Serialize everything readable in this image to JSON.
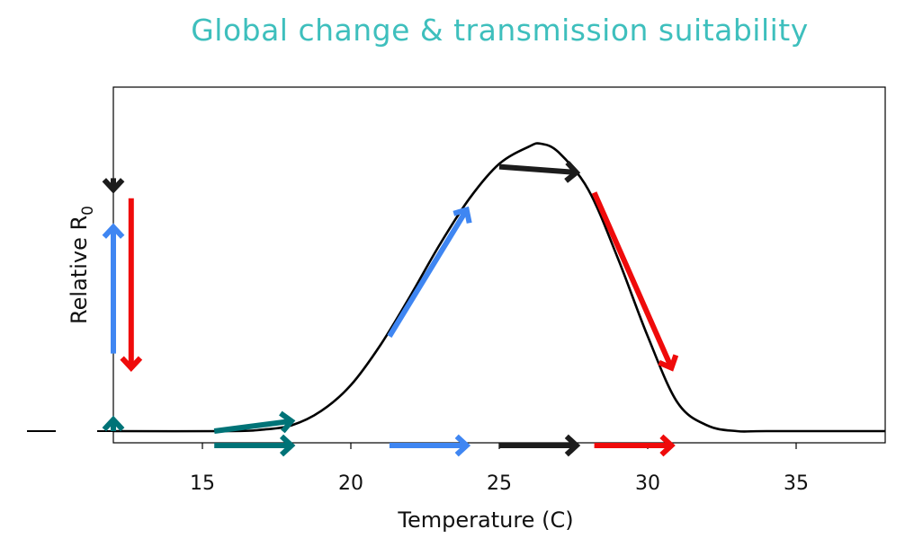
{
  "chart_data": {
    "type": "line",
    "title": "Global change & transmission suitability",
    "xlabel": "Temperature (C)",
    "ylabel": "Relative R",
    "ylabel_subscript": "0",
    "xlim": [
      12,
      38
    ],
    "ylim": [
      0,
      1
    ],
    "x_ticks": [
      15,
      20,
      25,
      30,
      35
    ],
    "y_ticks_shown": false,
    "curve": {
      "x": [
        12,
        16,
        17,
        18,
        19,
        20,
        21,
        22,
        23,
        24,
        25,
        26,
        26.4,
        27,
        28,
        29,
        30,
        31,
        32,
        33,
        34,
        38
      ],
      "y": [
        0.0,
        0.0,
        0.005,
        0.02,
        0.07,
        0.16,
        0.3,
        0.47,
        0.65,
        0.81,
        0.93,
        0.99,
        1.0,
        0.97,
        0.84,
        0.6,
        0.33,
        0.1,
        0.02,
        0.0,
        0.0,
        0.0
      ]
    },
    "arrows": [
      {
        "color": "#007377",
        "x0": 15.4,
        "y0": 0.0,
        "x1": 18.0,
        "y1": 0.035,
        "role": "curve"
      },
      {
        "color": "#007377",
        "x0": 15.4,
        "y0": -0.05,
        "x1": 18.0,
        "y1": -0.05,
        "role": "temperature-shift"
      },
      {
        "color": "#007377",
        "x0": 12.0,
        "y0": 0.0,
        "x1": 12.0,
        "y1": 0.04,
        "role": "r0-change"
      },
      {
        "color": "#3f86f2",
        "x0": 21.3,
        "y0": 0.33,
        "x1": 23.9,
        "y1": 0.77,
        "role": "curve"
      },
      {
        "color": "#3f86f2",
        "x0": 21.3,
        "y0": -0.05,
        "x1": 23.9,
        "y1": -0.05,
        "role": "temperature-shift"
      },
      {
        "color": "#3f86f2",
        "x0": 12.0,
        "y0": 0.27,
        "x1": 12.0,
        "y1": 0.71,
        "role": "r0-change"
      },
      {
        "color": "#1c1c1c",
        "x0": 25.0,
        "y0": 0.92,
        "x1": 27.6,
        "y1": 0.9,
        "role": "curve"
      },
      {
        "color": "#1c1c1c",
        "x0": 25.0,
        "y0": -0.05,
        "x1": 27.6,
        "y1": -0.05,
        "role": "temperature-shift"
      },
      {
        "color": "#1c1c1c",
        "x0": 12.0,
        "y0": 0.88,
        "x1": 12.0,
        "y1": 0.84,
        "role": "r0-change"
      },
      {
        "color": "#ef0b0b",
        "x0": 28.2,
        "y0": 0.83,
        "x1": 30.8,
        "y1": 0.22,
        "role": "curve"
      },
      {
        "color": "#ef0b0b",
        "x0": 28.2,
        "y0": -0.05,
        "x1": 30.8,
        "y1": -0.05,
        "role": "temperature-shift"
      },
      {
        "color": "#ef0b0b",
        "x0": 12.6,
        "y0": 0.81,
        "x1": 12.6,
        "y1": 0.22,
        "role": "r0-change"
      }
    ],
    "grid": false,
    "legend": "none"
  }
}
